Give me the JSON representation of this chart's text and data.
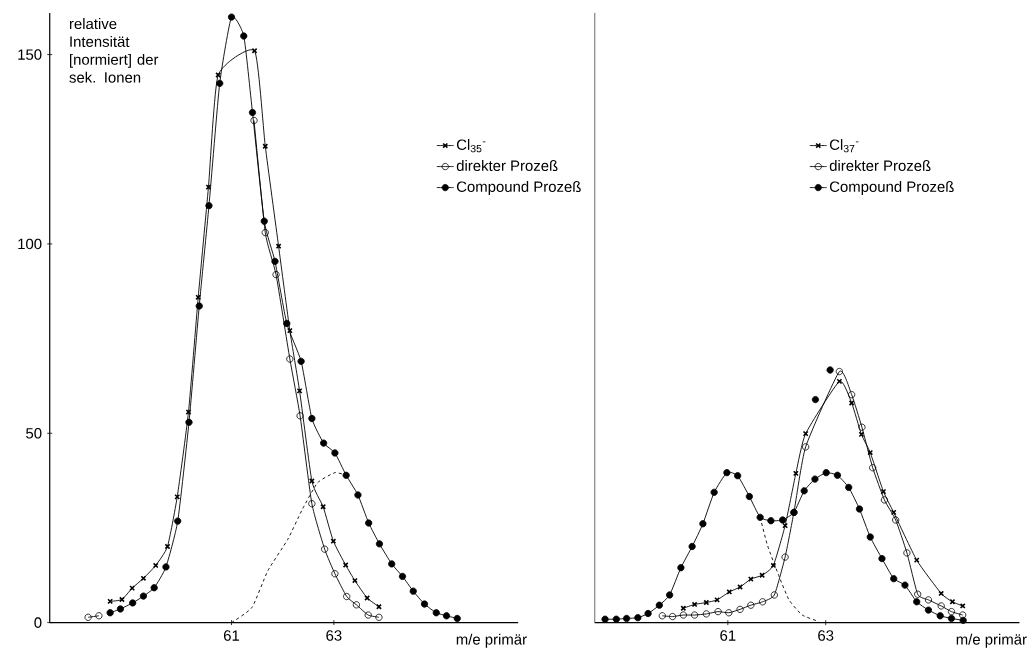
{
  "chart_data": [
    {
      "type": "line",
      "ylabel": "relative Intensität [normiert] der sek. Ionen",
      "xlabel": "m/e primär",
      "xlim": [
        57.45,
        66.6
      ],
      "ylim": [
        0,
        161
      ],
      "xticks": [
        61,
        63
      ],
      "yticks": [
        0,
        50,
        100,
        150
      ],
      "legend": "top right",
      "series": [
        {
          "name": "Cl$_{35}$$^{-}$",
          "color": "#000000",
          "marker": "cross",
          "x": [
            58.63,
            58.86,
            59.06,
            59.28,
            59.52,
            59.75,
            59.94,
            60.16,
            60.35,
            60.55,
            60.74,
            61.45,
            61.66,
            61.92,
            62.14,
            62.33,
            62.57,
            62.79,
            62.99,
            63.23,
            63.41,
            63.65,
            63.88
          ],
          "values": [
            5.6,
            6.1,
            9.1,
            11.7,
            15.1,
            20.1,
            33.2,
            55.6,
            85.9,
            115.0,
            144.6,
            151.0,
            125.8,
            99.4,
            77.1,
            61.2,
            37.4,
            30.6,
            21.5,
            15.2,
            11.1,
            6.5,
            4.2
          ]
        },
        {
          "name": "direkter Prozeß",
          "color": "#000000",
          "marker": "circle",
          "x": [
            58.2,
            58.41,
            60.0,
            61.44,
            61.66,
            61.87,
            62.14,
            62.34,
            62.57,
            62.82,
            63.02,
            63.25,
            63.44,
            63.67,
            63.88
          ],
          "values": [
            1.4,
            1.8,
            null,
            132.6,
            103.0,
            91.9,
            69.6,
            54.6,
            31.4,
            19.4,
            12.9,
            6.9,
            4.7,
            2.0,
            1.4
          ]
        },
        {
          "name": "Compound Prozeß",
          "color": "#000000",
          "marker": "circle_filled",
          "x": [
            58.63,
            58.83,
            59.07,
            59.28,
            59.49,
            59.72,
            59.95,
            60.17,
            60.37,
            60.56,
            60.77,
            61.0,
            61.24,
            61.41,
            61.64,
            61.85,
            62.08,
            62.36,
            62.57,
            62.8,
            63.02,
            63.24,
            63.47,
            63.68,
            63.89,
            64.13,
            64.34,
            64.55,
            64.77,
            65.0,
            65.2,
            65.41
          ],
          "values": [
            2.6,
            3.6,
            5.2,
            7.0,
            9.2,
            14.7,
            26.8,
            52.9,
            83.6,
            110.1,
            142.4,
            159.9,
            154.9,
            134.7,
            106.0,
            95.4,
            79.0,
            69.0,
            53.9,
            47.4,
            44.8,
            38.9,
            33.7,
            26.3,
            20.8,
            15.5,
            12.2,
            8.3,
            4.9,
            2.6,
            1.8,
            1.1
          ]
        },
        {
          "color": "#000000",
          "marker": "none",
          "line_style": "dashed",
          "x": [
            61.0,
            61.4,
            61.71,
            62.1,
            62.38,
            62.68,
            63.02,
            63.24
          ],
          "values": [
            0,
            4,
            13.7,
            22,
            29.8,
            36.9,
            39.6,
            38.9
          ]
        }
      ]
    },
    {
      "type": "line",
      "xlabel": "m/e primär",
      "xlim": [
        58.28,
        66.96
      ],
      "ylim": [
        0,
        161
      ],
      "xticks": [
        61,
        63
      ],
      "tick_labels": "x",
      "legend": "top right",
      "series": [
        {
          "name": "Cl$_{37}$$^{-}$",
          "color": "#000000",
          "marker": "cross",
          "x": [
            60.09,
            60.32,
            60.56,
            60.78,
            61.03,
            61.25,
            61.47,
            61.7,
            61.93,
            62.17,
            62.39,
            62.59,
            63.28,
            63.53,
            63.73,
            63.91,
            64.18,
            64.39,
            64.86,
            65.36,
            65.59,
            65.8
          ],
          "values": [
            3.8,
            4.8,
            5.3,
            6.0,
            8.1,
            9.4,
            11.5,
            12.5,
            15.1,
            25.6,
            39.4,
            49.9,
            63.7,
            58.0,
            49.7,
            44.9,
            34.6,
            29.1,
            16.5,
            7.7,
            5.5,
            4.4
          ]
        },
        {
          "name": "direkter Prozeß",
          "color": "#000000",
          "marker": "circle",
          "x": [
            59.66,
            59.87,
            60.09,
            60.32,
            60.56,
            60.8,
            61.02,
            61.25,
            61.47,
            61.71,
            61.95,
            62.17,
            62.35,
            62.59,
            63.28,
            63.53,
            63.74,
            63.96,
            64.2,
            64.43,
            64.66,
            64.88,
            65.1,
            65.36,
            65.57,
            65.8
          ],
          "values": [
            1.8,
            1.6,
            2.0,
            2.0,
            2.3,
            2.9,
            2.6,
            3.5,
            4.6,
            5.5,
            7.3,
            17.3,
            29.1,
            46.4,
            66.3,
            60.2,
            51.6,
            40.9,
            32.4,
            27.1,
            18.4,
            7.5,
            6.0,
            4.4,
            2.9,
            2.0
          ]
        },
        {
          "name": "Compound Prozeß",
          "color": "#000000",
          "marker": "circle_filled",
          "x": [
            58.49,
            58.72,
            58.93,
            59.16,
            59.37,
            59.6,
            59.81,
            60.04,
            60.27,
            60.49,
            60.72,
            60.98,
            61.2,
            61.44,
            61.66,
            61.88,
            62.12,
            62.35,
            62.56,
            62.78,
            63.01,
            63.24,
            63.47,
            63.69,
            63.91,
            64.15,
            64.39,
            64.62,
            64.86,
            65.1,
            65.34,
            65.57,
            65.81
          ],
          "values": [
            0.9,
            0.9,
            1.1,
            1.3,
            2.4,
            4.6,
            7.3,
            14.5,
            20.1,
            26.1,
            34.4,
            39.6,
            38.8,
            33.3,
            27.8,
            26.9,
            27.1,
            29.1,
            34.8,
            37.9,
            39.6,
            38.9,
            35.7,
            30.0,
            22.6,
            16.9,
            11.6,
            9.9,
            5.5,
            3.3,
            1.8,
            1.1,
            0.6
          ]
        },
        {
          "type": "scatter",
          "color": "#000000",
          "marker": "circle_filled",
          "x": [
            62.79,
            63.09
          ],
          "values": [
            58.9,
            66.7
          ]
        },
        {
          "color": "#000000",
          "marker": "none",
          "line_style": "dashed",
          "x": [
            61.66,
            61.81,
            62.05,
            62.25,
            62.52,
            62.86
          ],
          "values": [
            27.8,
            20.4,
            12.1,
            6.0,
            2.0,
            0.3
          ]
        }
      ]
    }
  ]
}
